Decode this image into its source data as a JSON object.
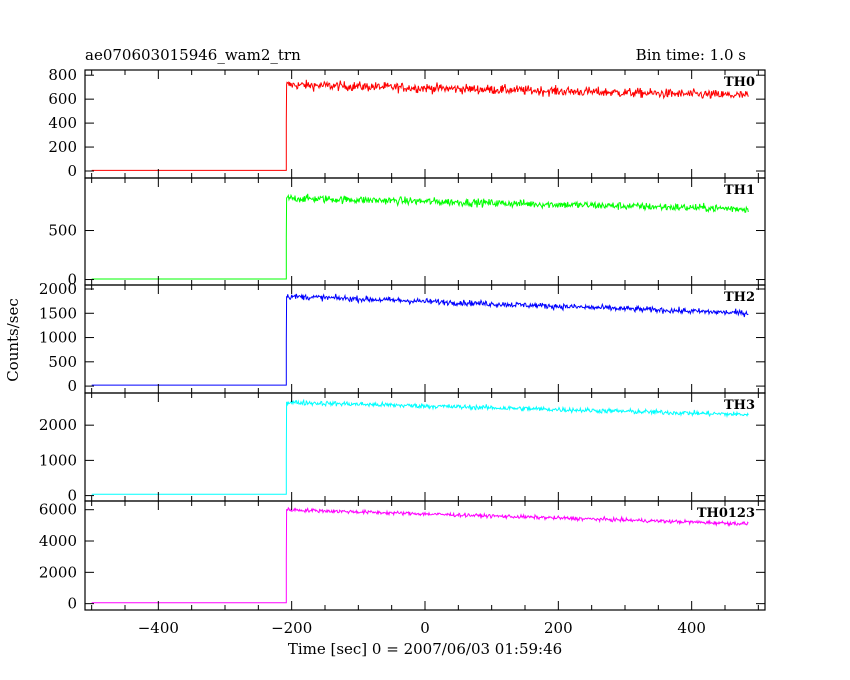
{
  "header": {
    "title": "ae070603015946_wam2_trn",
    "bin_time": "Bin time: 1.0 s"
  },
  "chart_data": {
    "type": "line",
    "xlabel": "Time [sec] 0 = 2007/06/03 01:59:46",
    "ylabel": "Counts/sec",
    "xlim": [
      -510,
      510
    ],
    "x_ticks": [
      -400,
      -200,
      0,
      200,
      400
    ],
    "x_ticks_labels": [
      "−400",
      "−200",
      "0",
      "200",
      "400"
    ],
    "trigger_time": -208,
    "data_start": -500,
    "data_end": 485,
    "panels": [
      {
        "name": "TH0",
        "color": "#ff0000",
        "ylim": [
          -25,
          810
        ],
        "yticks": [
          0,
          200,
          400,
          600,
          800
        ],
        "yticks_labels": [
          "0",
          "200",
          "400",
          "600",
          "800"
        ],
        "pre_level": 5,
        "spike": 400,
        "start_level": 720,
        "end_level": 630,
        "noise": 40
      },
      {
        "name": "TH1",
        "color": "#00ff00",
        "ylim": [
          -15,
          995
        ],
        "yticks": [
          0,
          500
        ],
        "yticks_labels": [
          "0",
          "500"
        ],
        "pre_level": 5,
        "spike": 430,
        "start_level": 830,
        "end_level": 720,
        "noise": 40
      },
      {
        "name": "TH2",
        "color": "#0000ff",
        "ylim": [
          -60,
          2000
        ],
        "yticks": [
          0,
          500,
          1000,
          1500,
          2000
        ],
        "yticks_labels": [
          "0",
          "500",
          "1000",
          "1500",
          "2000"
        ],
        "pre_level": 20,
        "spike": 900,
        "start_level": 1850,
        "end_level": 1500,
        "noise": 60
      },
      {
        "name": "TH3",
        "color": "#00ffff",
        "ylim": [
          -40,
          2800
        ],
        "yticks": [
          0,
          1000,
          2000
        ],
        "yticks_labels": [
          "0",
          "1000",
          "2000"
        ],
        "pre_level": 40,
        "spike": 1100,
        "start_level": 2650,
        "end_level": 2300,
        "noise": 70
      },
      {
        "name": "TH0123",
        "color": "#ff00ff",
        "ylim": [
          -150,
          6300
        ],
        "yticks": [
          0,
          2000,
          4000,
          6000
        ],
        "yticks_labels": [
          "0",
          "2000",
          "4000",
          "6000"
        ],
        "pre_level": 60,
        "spike": 2800,
        "start_level": 6000,
        "end_level": 5100,
        "noise": 120
      }
    ]
  }
}
